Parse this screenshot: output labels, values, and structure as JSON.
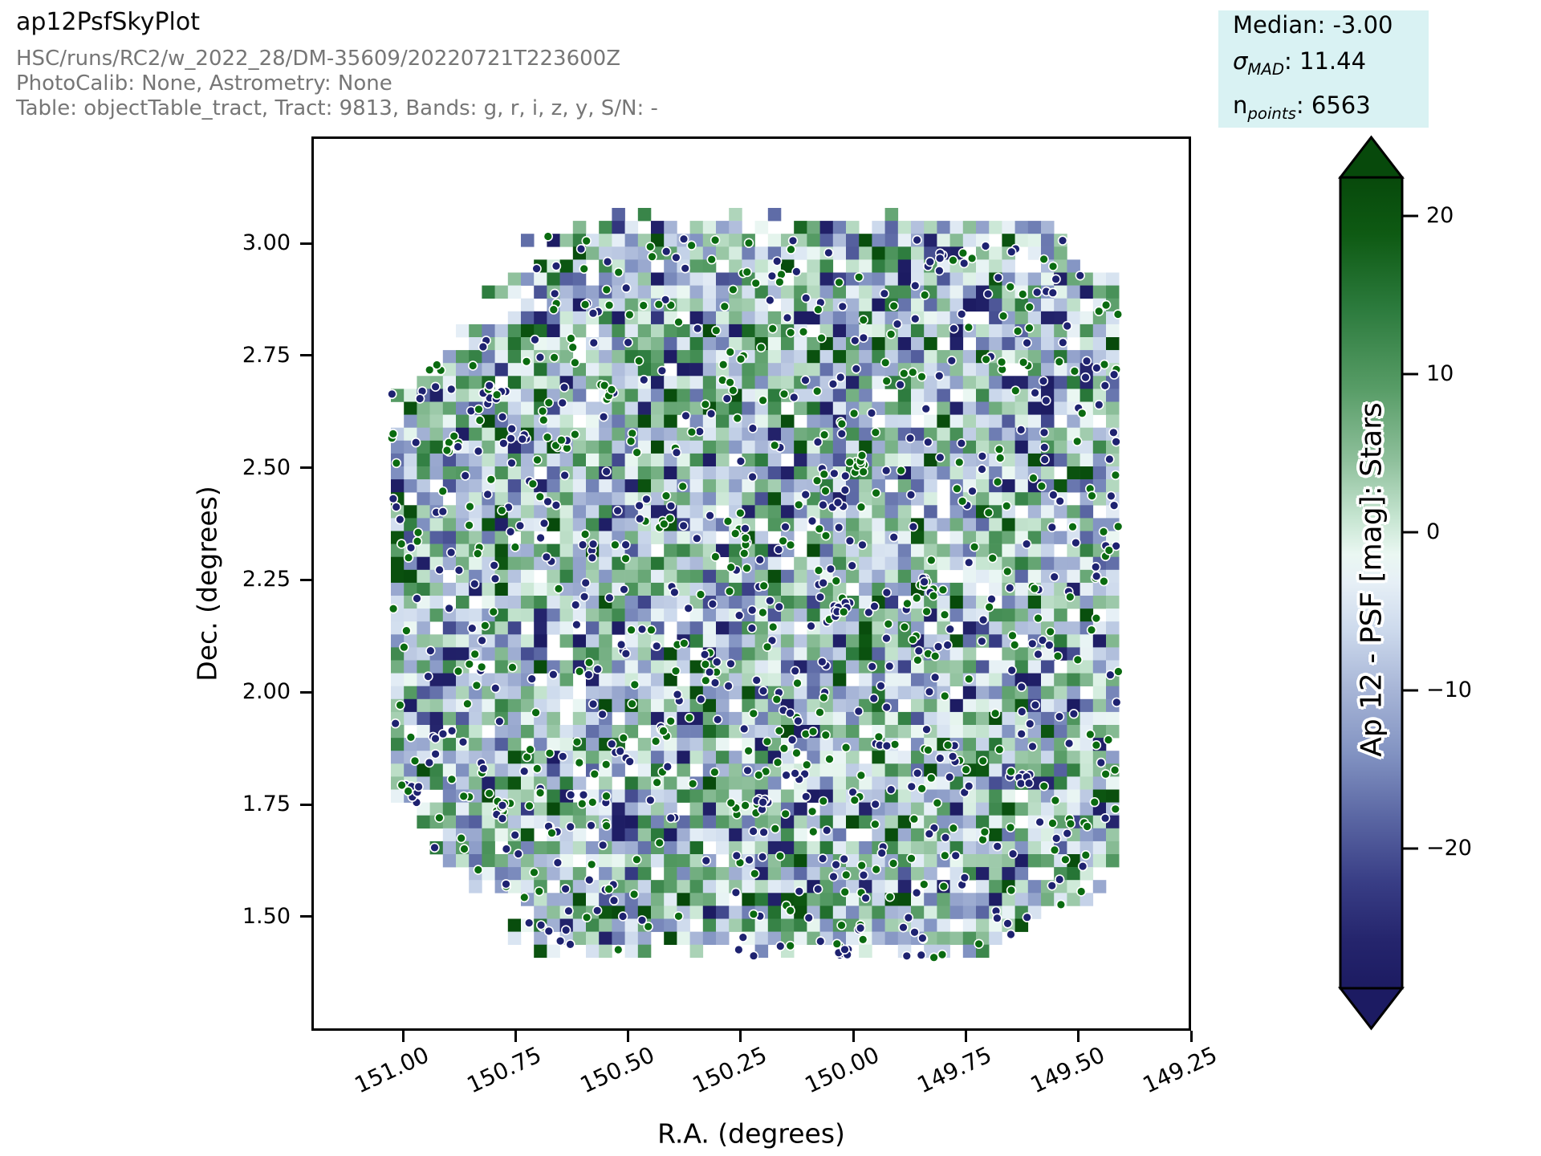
{
  "header": {
    "title": "ap12PsfSkyPlot",
    "run_line": "HSC/runs/RC2/w_2022_28/DM-35609/20220721T223600Z",
    "calib_line": "PhotoCalib: None, Astrometry: None",
    "table_line": "Table: objectTable_tract, Tract: 9813, Bands: g, r, i, z, y, S/N: -"
  },
  "stats_box": {
    "bg": "#d9f2f3",
    "median_text": "Median: -3.00",
    "sigma_symbol": "σ",
    "sigma_sub": "MAD",
    "sigma_rest": ": 11.44",
    "n_symbol": "n",
    "n_sub": "points",
    "n_rest": ": 6563"
  },
  "chart_data": {
    "type": "heatmap",
    "subtype": "sky-plot binned median map with overplotted star points",
    "title": "ap12PsfSkyPlot",
    "xlabel": "R.A. (degrees)",
    "ylabel": "Dec. (degrees)",
    "x_tick_labels": [
      "151.00",
      "150.75",
      "150.50",
      "150.25",
      "150.00",
      "149.75",
      "149.50",
      "149.25"
    ],
    "x_tick_values": [
      151.0,
      150.75,
      150.5,
      150.25,
      150.0,
      149.75,
      149.5,
      149.25
    ],
    "y_tick_labels": [
      "3.00",
      "2.75",
      "2.50",
      "2.25",
      "2.00",
      "1.75",
      "1.50"
    ],
    "y_tick_values": [
      3.0,
      2.75,
      2.5,
      2.25,
      2.0,
      1.75,
      1.5
    ],
    "x_axis_range": [
      151.2,
      149.25
    ],
    "y_axis_range": [
      1.25,
      3.23
    ],
    "data_footprint": {
      "ra_range": [
        149.41,
        151.02
      ],
      "dec_range": [
        1.41,
        3.07
      ],
      "shape": "octagonal tract with ragged bin edges"
    },
    "stats": {
      "median": -3.0,
      "sigma_mad": 11.44,
      "n_points": 6563
    },
    "grid": "off",
    "legend": "none",
    "colorbar": {
      "label": "Ap 12 - PSF [mag]: Stars",
      "tick_labels": [
        "20",
        "10",
        "0",
        "−10",
        "−20"
      ],
      "tick_values": [
        20,
        10,
        0,
        -10,
        -20
      ],
      "extend": "both",
      "gradient_stops": [
        [
          0.0,
          "#07490b"
        ],
        [
          0.07,
          "#0e5a13"
        ],
        [
          0.16,
          "#2b7a3c"
        ],
        [
          0.26,
          "#579c66"
        ],
        [
          0.35,
          "#8fc09c"
        ],
        [
          0.42,
          "#c6e5d1"
        ],
        [
          0.465,
          "#eaf7f2"
        ],
        [
          0.5,
          "#e6eff6"
        ],
        [
          0.56,
          "#ccd9ec"
        ],
        [
          0.63,
          "#a8b6d7"
        ],
        [
          0.71,
          "#8293c2"
        ],
        [
          0.79,
          "#5a66a3"
        ],
        [
          0.87,
          "#383d85"
        ],
        [
          0.94,
          "#25256d"
        ],
        [
          1.0,
          "#1c1b62"
        ]
      ],
      "top_color": "#07490b",
      "bottom_color": "#1c1b62"
    },
    "render": {
      "seed": 981307,
      "grid_nx": 56,
      "grid_ny": 58,
      "cutTL": 15,
      "cutTR": 5,
      "cutBL": 12,
      "cutBR": 7,
      "hole_prob": 0.055,
      "fringe_prob": 0.1,
      "dark_green_prob": 0.05,
      "dark_navy_prob": 0.06,
      "n_single_points": 840,
      "n_clusters": 14,
      "navy_fraction": 0.54,
      "point_navy": "#1e2270",
      "point_green": "#0a6b10",
      "point_edge": "#ffffff",
      "point_radius": 5.4
    }
  }
}
